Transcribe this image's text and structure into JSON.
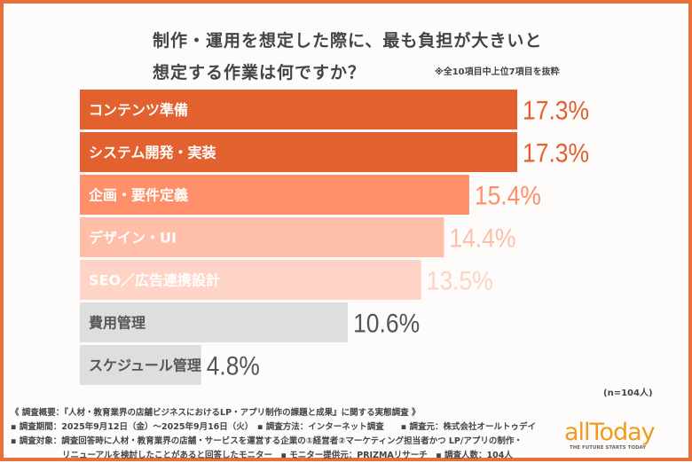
{
  "title_line1": "制作・運用を想定した際に、最も負担が大きいと",
  "title_line2": "想定する作業は何ですか？",
  "note": "※全10項目中上位7項目を抜粋",
  "sample": "(n=104人)",
  "chart_data": {
    "type": "bar",
    "orientation": "horizontal",
    "categories": [
      "コンテンツ準備",
      "システム開発・実装",
      "企画・要件定義",
      "デザイン・UI",
      "SEO／広告連携設計",
      "費用管理",
      "スケジュール管理"
    ],
    "values": [
      17.3,
      17.3,
      15.4,
      14.4,
      13.5,
      10.6,
      4.8
    ],
    "value_labels": [
      "17.3%",
      "17.3%",
      "15.4%",
      "14.4%",
      "13.5%",
      "10.6%",
      "4.8%"
    ],
    "unit": "%",
    "bar_colors": [
      "#E3612F",
      "#E3612F",
      "#FF8F68",
      "#FFBEA8",
      "#FFD3C5",
      "#DEDEDE",
      "#DEDEDE"
    ],
    "label_colors": [
      "#FFFFFF",
      "#FFFFFF",
      "#FFFFFF",
      "#FFFFFF",
      "#FFFFFF",
      "#555555",
      "#555555"
    ],
    "value_colors": [
      "#E3612F",
      "#E3612F",
      "#FF8F68",
      "#FFBEA8",
      "#FFD3C5",
      "#555555",
      "#555555"
    ],
    "grid": false,
    "legend": "none"
  },
  "footer": {
    "line1": "《 調査概要：『人材・教育業界の店舗ビジネスにおけるLP・アプリ制作の課題と成果』に関する実態調査 》",
    "line2": "▪ 調査期間：2025年9月12日（金）～2025年9月16日（火）　▪ 調査方法：インターネット調査　　▪ 調査元：株式会社オールトゥデイ",
    "line3": "▪ 調査対象：調査回答時に人材・教育業界の店舗・サービスを運営する企業の①経営者②マーケティング担当者かつ LP/アプリの制作・",
    "line4": "リニューアルを検討したことがあると回答したモニター　▪ モニター提供元：PRIZMAリサーチ　▪ 調査人数：104人"
  },
  "logo": {
    "word": "allToday",
    "tagline": "THE FUTURE STARTS TODAY"
  }
}
